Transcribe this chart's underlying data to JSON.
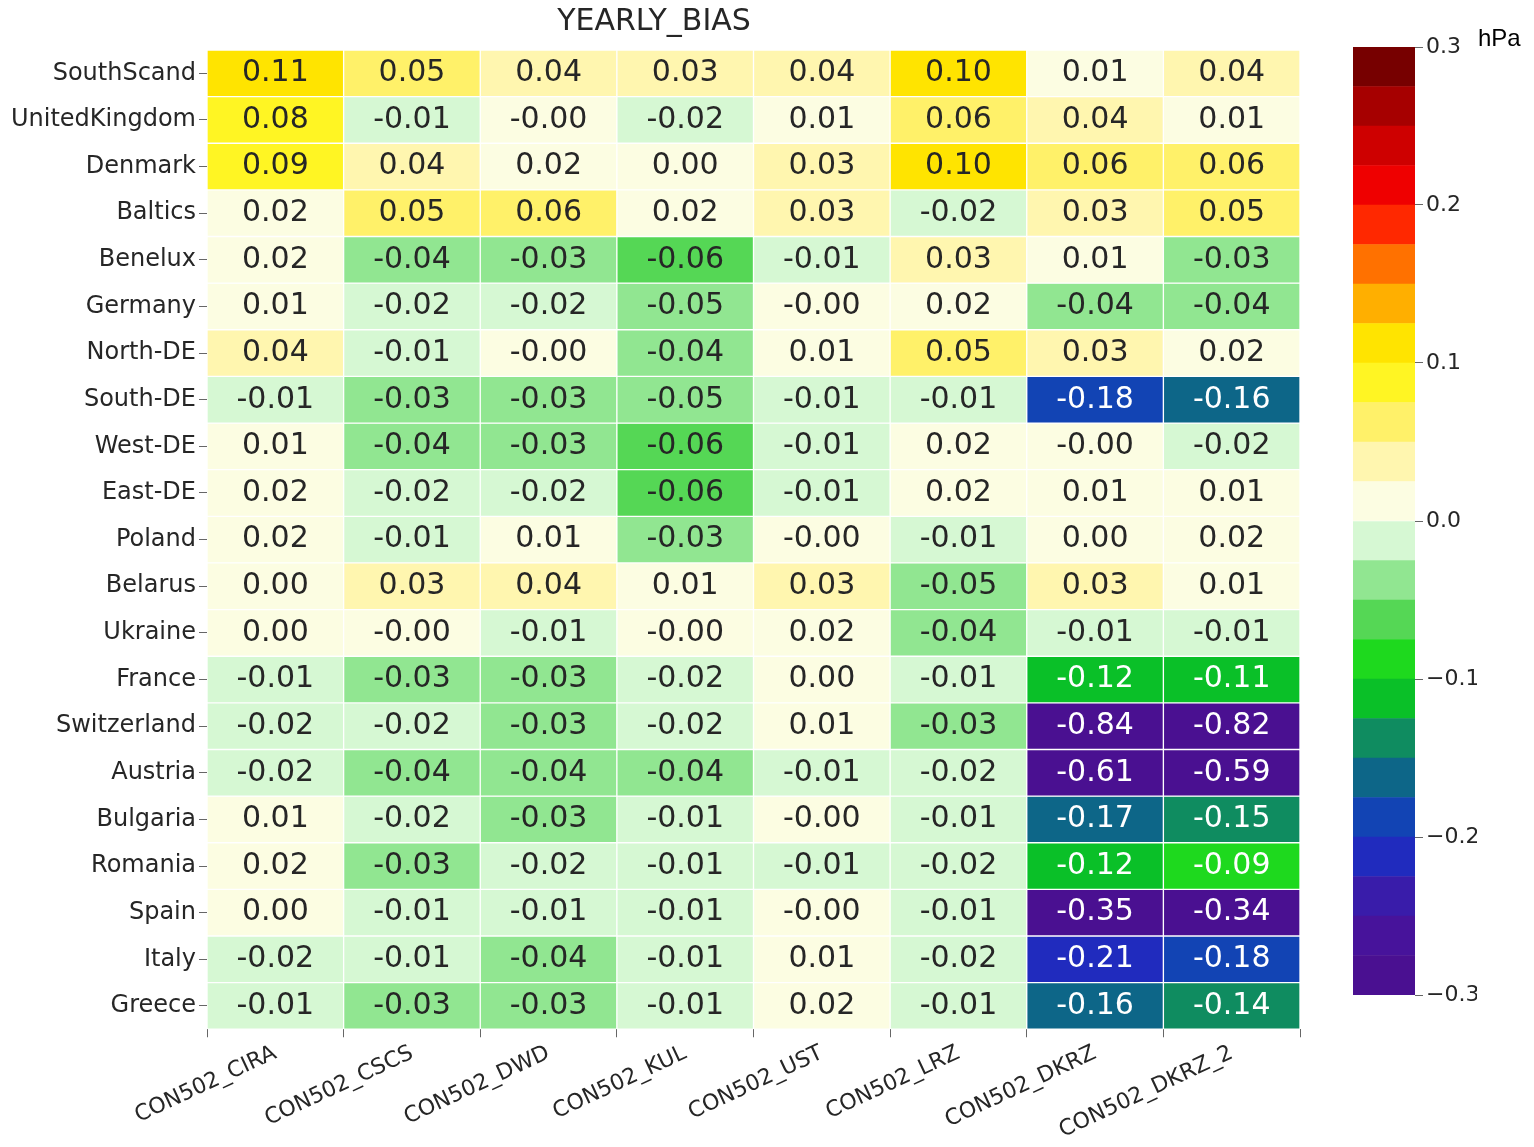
{
  "chart_data": {
    "type": "heatmap",
    "title": "YEARLY_BIAS",
    "clabel": "hPa",
    "categories": [
      "CON502_CIRA",
      "CON502_CSCS",
      "CON502_DWD",
      "CON502_KUL",
      "CON502_UST",
      "CON502_LRZ",
      "CON502_DKRZ",
      "CON502_DKRZ_2"
    ],
    "y_categories": [
      "SouthScand",
      "UnitedKingdom",
      "Denmark",
      "Baltics",
      "Benelux",
      "Germany",
      "North-DE",
      "South-DE",
      "West-DE",
      "East-DE",
      "Poland",
      "Belarus",
      "Ukraine",
      "France",
      "Switzerland",
      "Austria",
      "Bulgaria",
      "Romania",
      "Spain",
      "Italy",
      "Greece"
    ],
    "cells": [
      [
        0.11,
        0.05,
        0.04,
        0.03,
        0.04,
        0.1,
        0.01,
        0.04
      ],
      [
        0.08,
        -0.01,
        0,
        -0.02,
        0.01,
        0.06,
        0.04,
        0.01
      ],
      [
        0.09,
        0.04,
        0.02,
        0,
        0.03,
        0.1,
        0.06,
        0.06
      ],
      [
        0.02,
        0.05,
        0.06,
        0.02,
        0.03,
        -0.02,
        0.03,
        0.05
      ],
      [
        0.02,
        -0.04,
        -0.03,
        -0.06,
        -0.01,
        0.03,
        0.01,
        -0.03
      ],
      [
        0.01,
        -0.02,
        -0.02,
        -0.05,
        0,
        0.02,
        -0.04,
        -0.04
      ],
      [
        0.04,
        -0.01,
        0,
        -0.04,
        0.01,
        0.05,
        0.03,
        0.02
      ],
      [
        -0.01,
        -0.03,
        -0.03,
        -0.05,
        -0.01,
        -0.01,
        -0.18,
        -0.16
      ],
      [
        0.01,
        -0.04,
        -0.03,
        -0.06,
        -0.01,
        0.02,
        0,
        -0.02
      ],
      [
        0.02,
        -0.02,
        -0.02,
        -0.06,
        -0.01,
        0.02,
        0.01,
        0.01
      ],
      [
        0.02,
        -0.01,
        0.01,
        -0.03,
        0,
        -0.01,
        0,
        0.02
      ],
      [
        0,
        0.03,
        0.04,
        0.01,
        0.03,
        -0.05,
        0.03,
        0.01
      ],
      [
        0,
        0,
        -0.01,
        0,
        0.02,
        -0.04,
        -0.01,
        -0.01
      ],
      [
        -0.01,
        -0.03,
        -0.03,
        -0.02,
        0,
        -0.01,
        -0.12,
        -0.11
      ],
      [
        -0.02,
        -0.02,
        -0.03,
        -0.02,
        0.01,
        -0.03,
        -0.84,
        -0.82
      ],
      [
        -0.02,
        -0.04,
        -0.04,
        -0.04,
        -0.01,
        -0.02,
        -0.61,
        -0.59
      ],
      [
        0.01,
        -0.02,
        -0.03,
        -0.01,
        0,
        -0.01,
        -0.17,
        -0.15
      ],
      [
        0.02,
        -0.03,
        -0.02,
        -0.01,
        -0.01,
        -0.02,
        -0.12,
        -0.09
      ],
      [
        0,
        -0.01,
        -0.01,
        -0.01,
        0,
        -0.01,
        -0.35,
        -0.34
      ],
      [
        -0.02,
        -0.01,
        -0.04,
        -0.01,
        0.01,
        -0.02,
        -0.21,
        -0.18
      ],
      [
        -0.01,
        -0.03,
        -0.03,
        -0.01,
        0.02,
        -0.01,
        -0.16,
        -0.14
      ]
    ],
    "cell_labels": [
      [
        "0.11",
        "0.05",
        "0.04",
        "0.03",
        "0.04",
        "0.10",
        "0.01",
        "0.04"
      ],
      [
        "0.08",
        "-0.01",
        "-0.00",
        "-0.02",
        "0.01",
        "0.06",
        "0.04",
        "0.01"
      ],
      [
        "0.09",
        "0.04",
        "0.02",
        "0.00",
        "0.03",
        "0.10",
        "0.06",
        "0.06"
      ],
      [
        "0.02",
        "0.05",
        "0.06",
        "0.02",
        "0.03",
        "-0.02",
        "0.03",
        "0.05"
      ],
      [
        "0.02",
        "-0.04",
        "-0.03",
        "-0.06",
        "-0.01",
        "0.03",
        "0.01",
        "-0.03"
      ],
      [
        "0.01",
        "-0.02",
        "-0.02",
        "-0.05",
        "-0.00",
        "0.02",
        "-0.04",
        "-0.04"
      ],
      [
        "0.04",
        "-0.01",
        "-0.00",
        "-0.04",
        "0.01",
        "0.05",
        "0.03",
        "0.02"
      ],
      [
        "-0.01",
        "-0.03",
        "-0.03",
        "-0.05",
        "-0.01",
        "-0.01",
        "-0.18",
        "-0.16"
      ],
      [
        "0.01",
        "-0.04",
        "-0.03",
        "-0.06",
        "-0.01",
        "0.02",
        "-0.00",
        "-0.02"
      ],
      [
        "0.02",
        "-0.02",
        "-0.02",
        "-0.06",
        "-0.01",
        "0.02",
        "0.01",
        "0.01"
      ],
      [
        "0.02",
        "-0.01",
        "0.01",
        "-0.03",
        "-0.00",
        "-0.01",
        "0.00",
        "0.02"
      ],
      [
        "0.00",
        "0.03",
        "0.04",
        "0.01",
        "0.03",
        "-0.05",
        "0.03",
        "0.01"
      ],
      [
        "0.00",
        "-0.00",
        "-0.01",
        "-0.00",
        "0.02",
        "-0.04",
        "-0.01",
        "-0.01"
      ],
      [
        "-0.01",
        "-0.03",
        "-0.03",
        "-0.02",
        "0.00",
        "-0.01",
        "-0.12",
        "-0.11"
      ],
      [
        "-0.02",
        "-0.02",
        "-0.03",
        "-0.02",
        "0.01",
        "-0.03",
        "-0.84",
        "-0.82"
      ],
      [
        "-0.02",
        "-0.04",
        "-0.04",
        "-0.04",
        "-0.01",
        "-0.02",
        "-0.61",
        "-0.59"
      ],
      [
        "0.01",
        "-0.02",
        "-0.03",
        "-0.01",
        "-0.00",
        "-0.01",
        "-0.17",
        "-0.15"
      ],
      [
        "0.02",
        "-0.03",
        "-0.02",
        "-0.01",
        "-0.01",
        "-0.02",
        "-0.12",
        "-0.09"
      ],
      [
        "0.00",
        "-0.01",
        "-0.01",
        "-0.01",
        "-0.00",
        "-0.01",
        "-0.35",
        "-0.34"
      ],
      [
        "-0.02",
        "-0.01",
        "-0.04",
        "-0.01",
        "0.01",
        "-0.02",
        "-0.21",
        "-0.18"
      ],
      [
        "-0.01",
        "-0.03",
        "-0.03",
        "-0.01",
        "0.02",
        "-0.01",
        "-0.16",
        "-0.14"
      ]
    ],
    "clim": [
      -0.3,
      0.3
    ],
    "cticks": [
      {
        "value": 0.3,
        "label": "0.3"
      },
      {
        "value": 0.2,
        "label": "0.2"
      },
      {
        "value": 0.1,
        "label": "0.1"
      },
      {
        "value": 0,
        "label": "0.0"
      },
      {
        "value": -0.1,
        "label": "−0.1"
      },
      {
        "value": -0.2,
        "label": "−0.2"
      },
      {
        "value": -0.3,
        "label": "−0.3"
      }
    ]
  }
}
